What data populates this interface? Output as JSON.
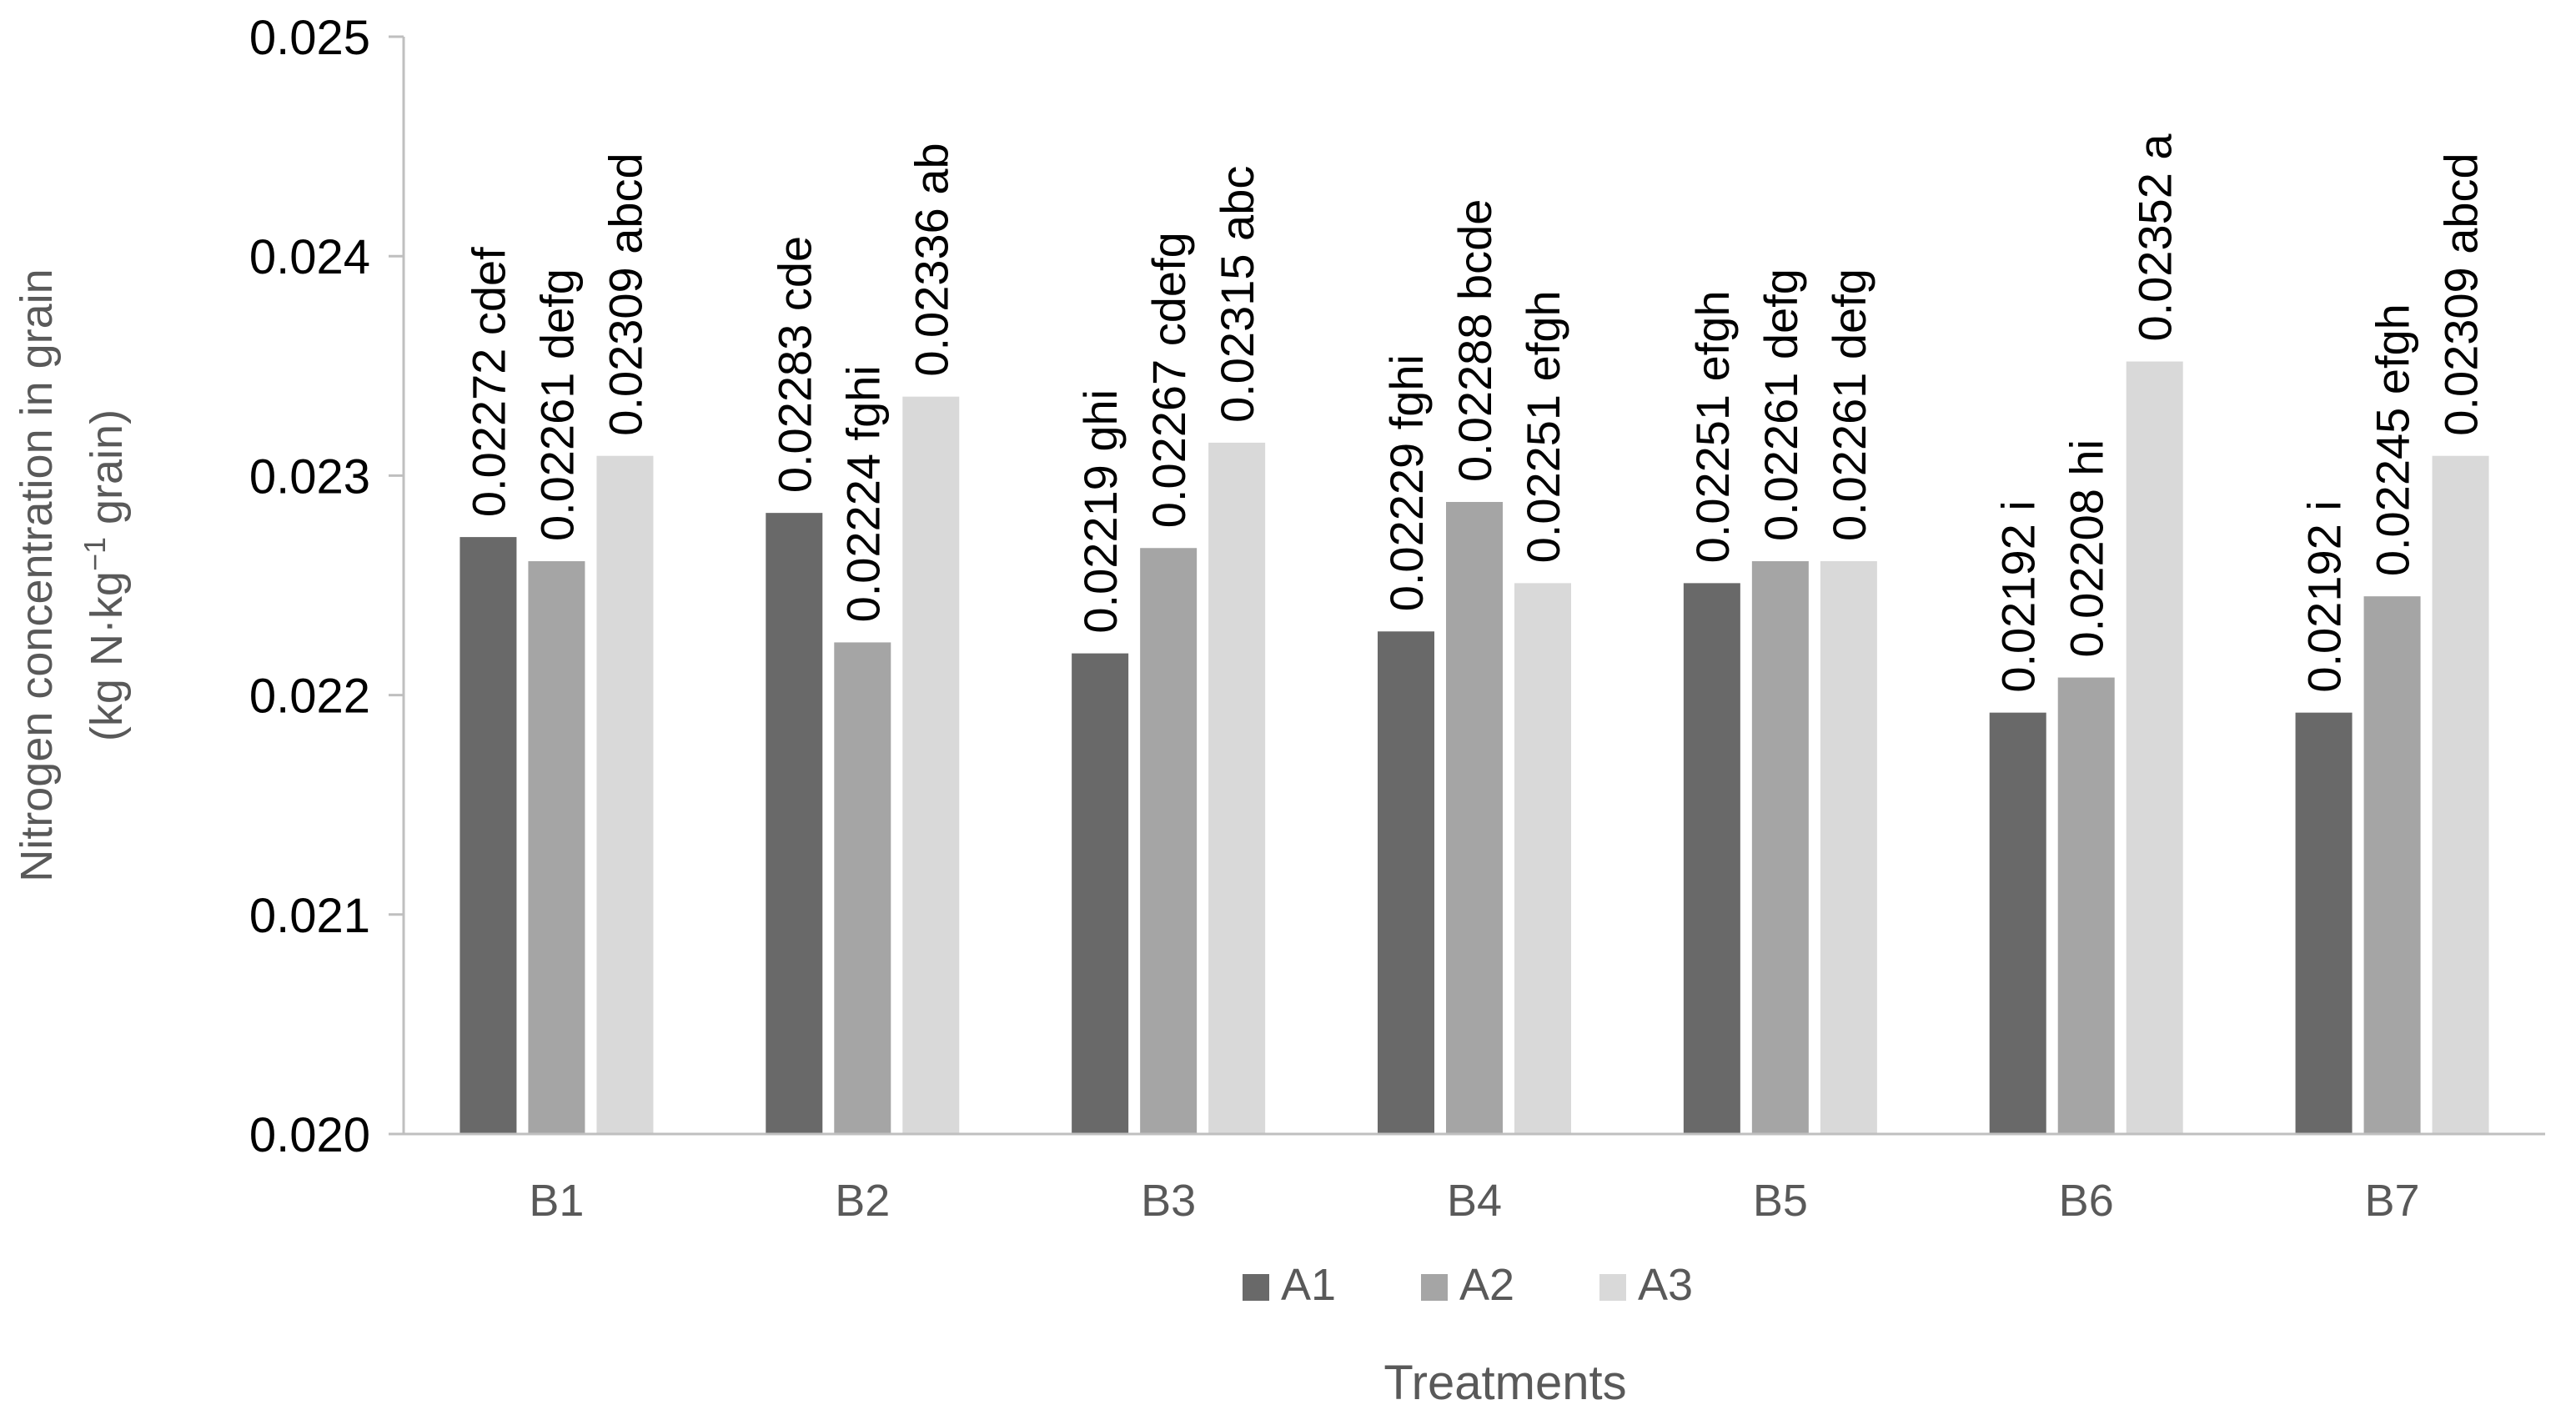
{
  "chart_data": {
    "type": "bar",
    "title": "",
    "xlabel": "Treatments",
    "ylabel": {
      "line1": "Nitrogen concentration in grain",
      "line2_prefix": "(kg N·kg",
      "line2_superscript": "−1",
      "line2_suffix": " grain)"
    },
    "ylim": [
      0.02,
      0.025
    ],
    "yticks": [
      "0.020",
      "0.021",
      "0.022",
      "0.023",
      "0.024",
      "0.025"
    ],
    "ytick_values": [
      0.02,
      0.021,
      0.022,
      0.023,
      0.024,
      0.025
    ],
    "grid": false,
    "legend_position": "bottom",
    "categories": [
      "B1",
      "B2",
      "B3",
      "B4",
      "B5",
      "B6",
      "B7"
    ],
    "series": [
      {
        "name": "A1",
        "color": "#696969",
        "values": [
          0.02272,
          0.02283,
          0.02219,
          0.02229,
          0.02251,
          0.02192,
          0.02192
        ],
        "labels": [
          "0.02272 cdef",
          "0.02283 cde",
          "0.02219 ghi",
          "0.02229 fghi",
          "0.02251 efgh",
          "0.02192 i",
          "0.02192 i"
        ]
      },
      {
        "name": "A2",
        "color": "#a5a5a5",
        "values": [
          0.02261,
          0.02224,
          0.02267,
          0.02288,
          0.02261,
          0.02208,
          0.02245
        ],
        "labels": [
          "0.02261 defg",
          "0.02224 fghi",
          "0.02267 cdefg",
          "0.02288 bcde",
          "0.02261 defg",
          "0.02208 hi",
          "0.02245 efgh"
        ]
      },
      {
        "name": "A3",
        "color": "#d9d9d9",
        "values": [
          0.02309,
          0.02336,
          0.02315,
          0.02251,
          0.02261,
          0.02352,
          0.02309
        ],
        "labels": [
          "0.02309 abcd",
          "0.02336 ab",
          "0.02315 abc",
          "0.02251 efgh",
          "0.02261 defg",
          "0.02352 a",
          "0.02309 abcd"
        ]
      }
    ]
  },
  "colors": {
    "axis": "#bfbfbf",
    "text": "#000000",
    "axis_title": "#595959"
  }
}
